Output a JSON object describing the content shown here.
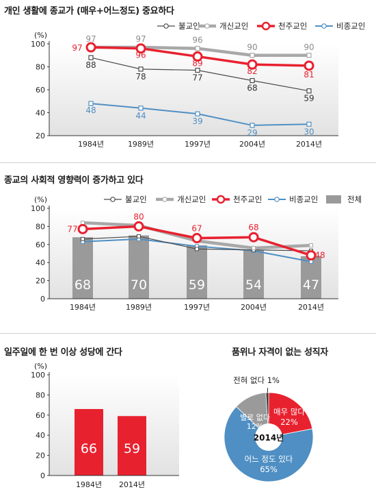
{
  "colors": {
    "bg_gradient_top": "#ffffff",
    "bg_gradient_bottom": "#e2e2e2",
    "none": "#4a4a4a",
    "protestant": "#a8a8a8",
    "catholic": "#e8212f",
    "other": "#4f8fc3",
    "total_bar": "#9a9a9a",
    "red_bar": "#e8212f",
    "pie_very": "#e8212f",
    "pie_some": "#4f8fc3",
    "pie_not": "#9a9a9a",
    "pie_none": "#3a3a3a"
  },
  "chart1": {
    "title": "개인 생활에 종교가 (매우+어느정도) 중요하다",
    "unit": "(%)",
    "legend": [
      "불교인",
      "개신교인",
      "천주교인",
      "비종교인"
    ]
  },
  "chart2": {
    "title": "종교의 사회적 영향력이 증가하고 있다",
    "unit": "(%)",
    "legend": [
      "불교인",
      "개신교인",
      "천주교인",
      "비종교인",
      "전체"
    ]
  },
  "chart3": {
    "title": "일주일에 한 번 이상 성당에 간다",
    "unit": "(%)"
  },
  "chart4": {
    "title": "품위나 자격이 없는 성직자",
    "center_label": "2014년"
  },
  "chart_data": [
    {
      "type": "line",
      "title": "개인 생활에 종교가 (매우+어느정도) 중요하다",
      "categories": [
        "1984년",
        "1989년",
        "1997년",
        "2004년",
        "2014년"
      ],
      "ylim": [
        20,
        100
      ],
      "yticks": [
        20,
        40,
        60,
        80,
        100
      ],
      "grid": false,
      "legend": "top",
      "series": [
        {
          "name": "불교인",
          "values": [
            88,
            78,
            77,
            68,
            59
          ]
        },
        {
          "name": "개신교인",
          "values": [
            97,
            97,
            96,
            90,
            90
          ]
        },
        {
          "name": "천주교인",
          "values": [
            97,
            96,
            89,
            82,
            81
          ]
        },
        {
          "name": "비종교인",
          "values": [
            48,
            44,
            39,
            29,
            30
          ]
        }
      ]
    },
    {
      "type": "bar+line",
      "title": "종교의 사회적 영향력이 증가하고 있다",
      "categories": [
        "1984년",
        "1989년",
        "1997년",
        "2004년",
        "2014년"
      ],
      "ylim": [
        0,
        100
      ],
      "yticks": [
        0,
        20,
        40,
        60,
        80,
        100
      ],
      "grid": false,
      "legend": "top",
      "bars": {
        "name": "전체",
        "values": [
          68,
          70,
          59,
          54,
          47
        ]
      },
      "series": [
        {
          "name": "불교인",
          "values": [
            66,
            69,
            55,
            54,
            53
          ]
        },
        {
          "name": "개신교인",
          "values": [
            84,
            81,
            64,
            56,
            59
          ]
        },
        {
          "name": "천주교인",
          "values": [
            77,
            80,
            67,
            68,
            48
          ]
        },
        {
          "name": "비종교인",
          "values": [
            63,
            66,
            58,
            53,
            41
          ]
        }
      ]
    },
    {
      "type": "bar",
      "title": "일주일에 한 번 이상 성당에 간다",
      "categories": [
        "1984년",
        "2014년"
      ],
      "values": [
        66,
        59
      ],
      "ylim": [
        0,
        100
      ],
      "yticks": [
        0,
        20,
        40,
        60,
        80,
        100
      ]
    },
    {
      "type": "pie",
      "title": "품위나 자격이 없는 성직자",
      "center": "2014년",
      "slices": [
        {
          "label": "매우 많다",
          "value": 22
        },
        {
          "label": "어느 정도 있다",
          "value": 65
        },
        {
          "label": "별로 없다",
          "value": 12
        },
        {
          "label": "전혀 없다",
          "value": 1
        }
      ]
    }
  ]
}
